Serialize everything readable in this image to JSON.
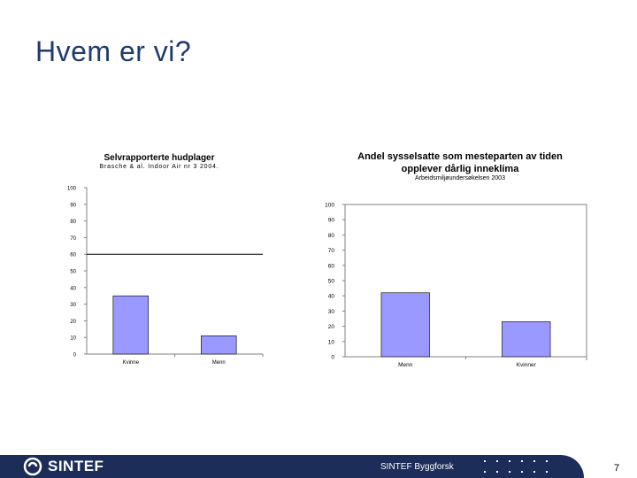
{
  "slide": {
    "title": "Hvem er vi?"
  },
  "footer": {
    "logo_text": "SINTEF",
    "organization": "SINTEF Byggforsk",
    "page_number": "7"
  },
  "chart_data": [
    {
      "type": "bar",
      "title": "Selvrapporterte hudplager",
      "subtitle": "Brasche & al. Indoor Air nr 3 2004.",
      "categories": [
        "Kvinne",
        "Menn"
      ],
      "values": [
        35,
        11
      ],
      "ylim": [
        0,
        100
      ],
      "yticks": [
        0,
        10,
        20,
        30,
        40,
        50,
        60,
        70,
        80,
        90,
        100
      ],
      "ytick_labels": [
        "0",
        "10",
        "20",
        "30",
        "40",
        "50",
        "60",
        "70",
        "80",
        "90",
        "100"
      ],
      "reference_line": 60,
      "grid": false,
      "bar_color": "#9999ff"
    },
    {
      "type": "bar",
      "title_line1": "Andel sysselsatte som mesteparten av tiden",
      "title_line2": "opplever dårlig inneklima",
      "subtitle": "Arbeidsmiljøundersøkelsen 2003",
      "categories": [
        "Menn",
        "Kvinner"
      ],
      "values": [
        42,
        23
      ],
      "ylim": [
        0,
        100
      ],
      "yticks": [
        0,
        10,
        20,
        30,
        40,
        50,
        60,
        70,
        80,
        90,
        100
      ],
      "ytick_labels": [
        "0",
        "10",
        "20",
        "30",
        "40",
        "50",
        "60",
        "70",
        "80",
        "90",
        "100"
      ],
      "grid": false,
      "bar_color": "#9999ff"
    }
  ]
}
